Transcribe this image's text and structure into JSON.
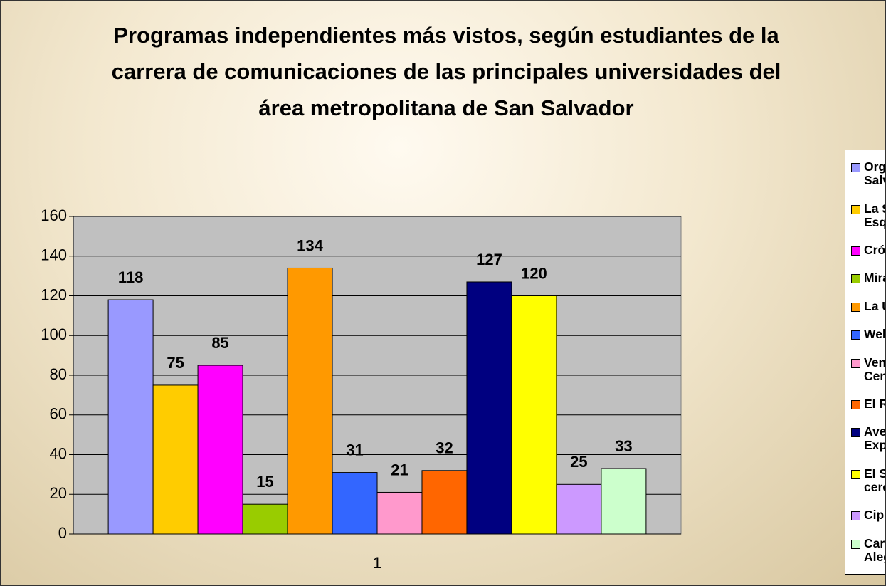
{
  "chart_data": {
    "type": "bar",
    "title": "Programas independientes más vistos, según estudiantes de la carrera de comunicaciones de las principales universidades del área metropolitana de San Salvador",
    "categories": [
      "1"
    ],
    "series": [
      {
        "name": "Orgullosamente Salvadoreño",
        "color": "#9999ff",
        "values": [
          118
        ]
      },
      {
        "name": "La Súper Esquina",
        "color": "#ffcc00",
        "values": [
          75
        ]
      },
      {
        "name": "Crónicas",
        "color": "#ff00ff",
        "values": [
          85
        ]
      },
      {
        "name": "Miradas",
        "color": "#99cc00",
        "values": [
          15
        ]
      },
      {
        "name": "La Urbe",
        "color": "#ff9900",
        "values": [
          134
        ]
      },
      {
        "name": "Web TV",
        "color": "#3366ff",
        "values": [
          31
        ]
      },
      {
        "name": "Ventana Centroamericama",
        "color": "#ff99cc",
        "values": [
          21
        ]
      },
      {
        "name": "El Reto",
        "color": "#ff6600",
        "values": [
          32
        ]
      },
      {
        "name": "Aventura Explorer",
        "color": "#000080",
        "values": [
          127
        ]
      },
      {
        "name": "El Salvador de cerca",
        "color": "#ffff00",
        "values": [
          120
        ]
      },
      {
        "name": "Cipotoons",
        "color": "#cc99ff",
        "values": [
          25
        ]
      },
      {
        "name": "Caravana de la Alegría",
        "color": "#ccffcc",
        "values": [
          33
        ]
      }
    ],
    "ylim": [
      0,
      160
    ],
    "yticks": [
      0,
      20,
      40,
      60,
      80,
      100,
      120,
      140,
      160
    ],
    "grid": true,
    "legend": "right",
    "plot_background": "#c0c0c0"
  }
}
